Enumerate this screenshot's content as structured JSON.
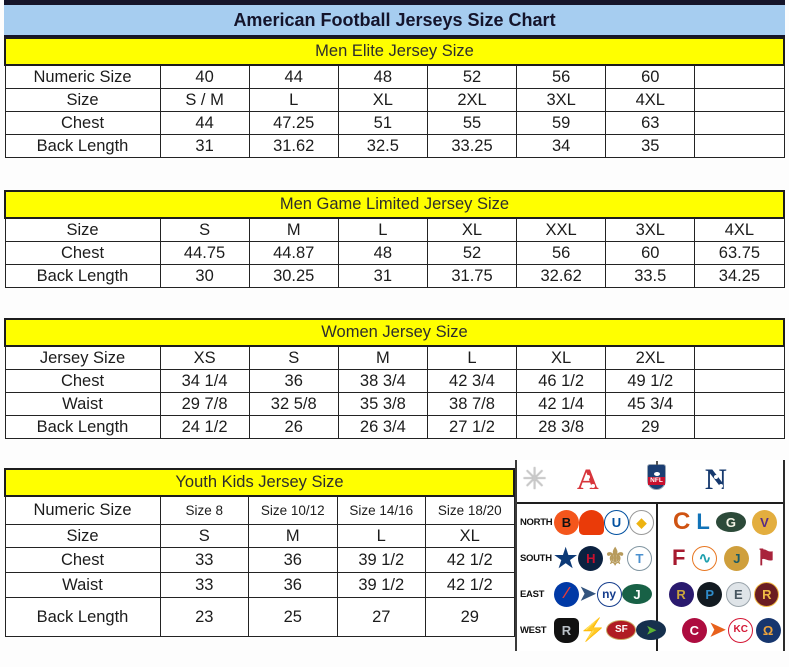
{
  "title": "American Football Jerseys Size Chart",
  "colors": {
    "title_bg": "#a6cdf0",
    "header_bg": "#ffff00",
    "table_border": "#232323",
    "afc_red": "#d8363c",
    "nfc_blue": "#16396e"
  },
  "tables": [
    {
      "name": "men-elite",
      "header": "Men Elite Jersey Size",
      "rows": [
        {
          "label": "Numeric Size",
          "cells": [
            "40",
            "44",
            "48",
            "52",
            "56",
            "60",
            ""
          ]
        },
        {
          "label": "Size",
          "cells": [
            "S / M",
            "L",
            "XL",
            "2XL",
            "3XL",
            "4XL",
            ""
          ]
        },
        {
          "label": "Chest",
          "cells": [
            "44",
            "47.25",
            "51",
            "55",
            "59",
            "63",
            ""
          ]
        },
        {
          "label": "Back Length",
          "cells": [
            "31",
            "31.62",
            "32.5",
            "33.25",
            "34",
            "35",
            ""
          ]
        }
      ]
    },
    {
      "name": "men-game-limited",
      "header": "Men Game Limited Jersey Size",
      "rows": [
        {
          "label": "Size",
          "cells": [
            "S",
            "M",
            "L",
            "XL",
            "XXL",
            "3XL",
            "4XL"
          ]
        },
        {
          "label": "Chest",
          "cells": [
            "44.75",
            "44.87",
            "48",
            "52",
            "56",
            "60",
            "63.75"
          ]
        },
        {
          "label": "Back Length",
          "cells": [
            "30",
            "30.25",
            "31",
            "31.75",
            "32.62",
            "33.5",
            "34.25"
          ]
        }
      ]
    },
    {
      "name": "women",
      "header": "Women Jersey Size",
      "rows": [
        {
          "label": "Jersey Size",
          "cells": [
            "XS",
            "S",
            "M",
            "L",
            "XL",
            "2XL",
            ""
          ]
        },
        {
          "label": "Chest",
          "cells": [
            "34 1/4",
            "36",
            "38 3/4",
            "42 3/4",
            "46 1/2",
            "49 1/2",
            ""
          ]
        },
        {
          "label": "Waist",
          "cells": [
            "29 7/8",
            "32 5/8",
            "35 3/8",
            "38 7/8",
            "42 1/4",
            "45 3/4",
            ""
          ]
        },
        {
          "label": "Back Length",
          "cells": [
            "24 1/2",
            "26",
            "26 3/4",
            "27 1/2",
            "28 3/8",
            "29",
            ""
          ]
        }
      ]
    },
    {
      "name": "youth-kids",
      "header": "Youth Kids Jersey Size",
      "rows": [
        {
          "label": "Numeric Size",
          "small": true,
          "cells": [
            "Size 8",
            "Size 10/12",
            "Size 14/16",
            "Size 18/20"
          ]
        },
        {
          "label": "Size",
          "cells": [
            "S",
            "M",
            "L",
            "XL"
          ]
        },
        {
          "label": "Chest",
          "cells": [
            "33",
            "36",
            "39 1/2",
            "42 1/2"
          ]
        },
        {
          "label": "Waist",
          "cells": [
            "33",
            "36",
            "39 1/2",
            "42 1/2"
          ]
        },
        {
          "label": "Back Length",
          "cells": [
            "23",
            "25",
            "27",
            "29"
          ]
        }
      ]
    }
  ],
  "logo_panel": {
    "header": {
      "starburst_glyph": "✳",
      "afc_letter": "A",
      "nfl_text": "NFL",
      "nfc_letter": "N"
    },
    "rows": [
      {
        "label": "NORTH",
        "afc": [
          {
            "name": "bengals-logo",
            "glyph": "B",
            "bg": "#f4561c",
            "fg": "#111111",
            "shape": "c"
          },
          {
            "name": "browns-logo",
            "glyph": "",
            "bg": "#ea3b09",
            "fg": "#ffffff",
            "shape": "h"
          },
          {
            "name": "colts-logo",
            "glyph": "U",
            "bg": "#ffffff",
            "fg": "#0050a0",
            "border": "#0050a0",
            "shape": "c"
          },
          {
            "name": "steelers-logo",
            "glyph": "◆",
            "bg": "#ffffff",
            "fg": "#edb311",
            "border": "#999999",
            "shape": "c"
          }
        ],
        "nfc": [
          {
            "name": "bears-logo",
            "glyph": "C",
            "fg": "#cf5312",
            "shape": "p",
            "size": 24
          },
          {
            "name": "lions-logo",
            "glyph": "L",
            "fg": "#1173b8",
            "shape": "p",
            "size": 22
          },
          {
            "name": "packers-logo",
            "glyph": "G",
            "bg": "#2c4a39",
            "fg": "#f4f4e6",
            "shape": "o"
          },
          {
            "name": "vikings-logo",
            "glyph": "V",
            "bg": "#e3ae3f",
            "fg": "#582c83",
            "shape": "c"
          }
        ]
      },
      {
        "label": "SOUTH",
        "afc": [
          {
            "name": "cowboys-logo",
            "glyph": "★",
            "fg": "#0d3a77",
            "shape": "p",
            "size": 26
          },
          {
            "name": "texans-logo",
            "glyph": "H",
            "bg": "#0b2140",
            "fg": "#c8102e",
            "shape": "c"
          },
          {
            "name": "saints-logo",
            "glyph": "⚜",
            "fg": "#b79b5c",
            "shape": "p",
            "size": 24
          },
          {
            "name": "titans-logo",
            "glyph": "T",
            "bg": "#ffffff",
            "fg": "#4a90cf",
            "border": "#7f94a0",
            "shape": "c"
          }
        ],
        "nfc": [
          {
            "name": "falcons-logo",
            "glyph": "F",
            "fg": "#a6192e",
            "shape": "p",
            "size": 22
          },
          {
            "name": "dolphins-logo",
            "glyph": "∿",
            "bg": "#ffffff",
            "fg": "#1fa0ae",
            "border": "#e87722",
            "shape": "c",
            "size": 15
          },
          {
            "name": "jaguars-logo",
            "glyph": "J",
            "bg": "#cf9f3c",
            "fg": "#1b5b66",
            "shape": "c"
          },
          {
            "name": "buccaneers-logo",
            "glyph": "⚑",
            "fg": "#a8233b",
            "shape": "p",
            "size": 22
          }
        ]
      },
      {
        "label": "EAST",
        "afc": [
          {
            "name": "bills-logo",
            "glyph": "∕",
            "bg": "#0039a6",
            "fg": "#e23b3b",
            "shape": "c",
            "size": 16
          },
          {
            "name": "patriots-logo",
            "glyph": "➤",
            "fg": "#33547e",
            "shape": "p",
            "size": 20
          },
          {
            "name": "giants-logo",
            "glyph": "ny",
            "bg": "#ffffff",
            "fg": "#143c8c",
            "border": "#143c8c",
            "shape": "c",
            "size": 12
          },
          {
            "name": "jets-logo",
            "glyph": "J",
            "bg": "#186146",
            "fg": "#ffffff",
            "shape": "o"
          }
        ],
        "nfc": [
          {
            "name": "ravens-logo",
            "glyph": "R",
            "bg": "#2a1a6e",
            "fg": "#c9a43c",
            "shape": "c"
          },
          {
            "name": "panthers-logo",
            "glyph": "P",
            "bg": "#121a21",
            "fg": "#2f8ccb",
            "shape": "c"
          },
          {
            "name": "eagles-logo",
            "glyph": "E",
            "bg": "#dfe4e8",
            "fg": "#46555f",
            "border": "#9aa4ab",
            "shape": "c"
          },
          {
            "name": "redskins-logo",
            "glyph": "R",
            "bg": "#6b1d22",
            "fg": "#efba45",
            "border": "#efba45",
            "shape": "c"
          }
        ]
      },
      {
        "label": "WEST",
        "afc": [
          {
            "name": "raiders-logo",
            "glyph": "R",
            "bg": "#111111",
            "fg": "#b9c0c6",
            "shape": "s"
          },
          {
            "name": "chargers-logo",
            "glyph": "⚡",
            "fg": "#f2b316",
            "shape": "p",
            "size": 22
          },
          {
            "name": "fortyniners-logo",
            "glyph": "SF",
            "bg": "#b01c23",
            "fg": "#ffffff",
            "border": "#c8a75f",
            "shape": "o",
            "size": 10
          },
          {
            "name": "seahawks-logo",
            "glyph": "➤",
            "bg": "#16304d",
            "fg": "#5cb234",
            "shape": "o",
            "size": 12
          }
        ],
        "nfc": [
          {
            "name": "cardinals-logo",
            "glyph": "C",
            "bg": "#ad0c3f",
            "fg": "#ffffff",
            "shape": "c"
          },
          {
            "name": "broncos-logo",
            "glyph": "➤",
            "fg": "#e8611c",
            "shape": "p",
            "size": 20
          },
          {
            "name": "chiefs-logo",
            "glyph": "KC",
            "bg": "#ffffff",
            "fg": "#d41735",
            "border": "#d41735",
            "shape": "c",
            "size": 10
          },
          {
            "name": "rams-logo",
            "glyph": "Ω",
            "bg": "#17366e",
            "fg": "#eda33c",
            "shape": "c"
          }
        ]
      }
    ]
  }
}
